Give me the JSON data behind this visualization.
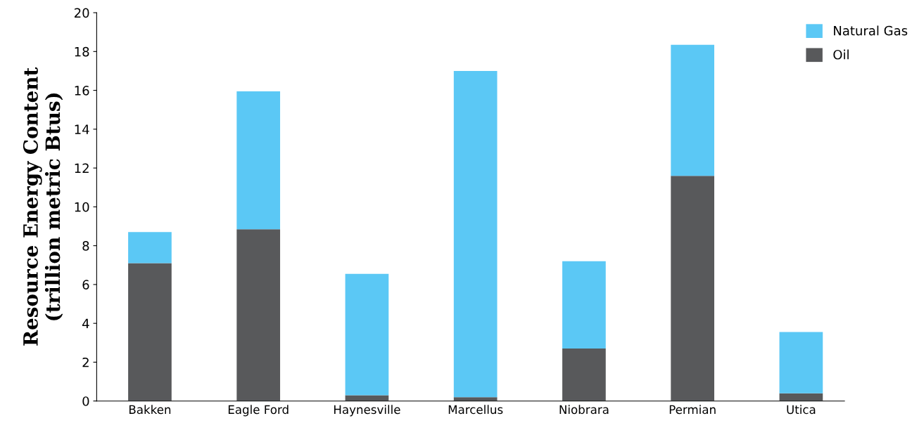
{
  "chart_data": {
    "type": "bar",
    "stacked": true,
    "ylabel": "Resource Energy Content\n(trillion metric Btus)",
    "categories": [
      "Bakken",
      "Eagle Ford",
      "Haynesville",
      "Marcellus",
      "Niobrara",
      "Permian",
      "Utica"
    ],
    "series": [
      {
        "name": "Oil",
        "color": "#58595b",
        "values": [
          7.1,
          8.85,
          0.3,
          0.2,
          2.7,
          11.6,
          0.4
        ]
      },
      {
        "name": "Natural Gas",
        "color": "#5bc8f5",
        "values": [
          1.6,
          7.1,
          6.25,
          16.8,
          4.5,
          6.75,
          3.15
        ]
      }
    ],
    "ylim": [
      0,
      20
    ],
    "yticks": [
      0,
      2,
      4,
      6,
      8,
      10,
      12,
      14,
      16,
      18,
      20
    ],
    "grid": false,
    "legend": "top right"
  }
}
